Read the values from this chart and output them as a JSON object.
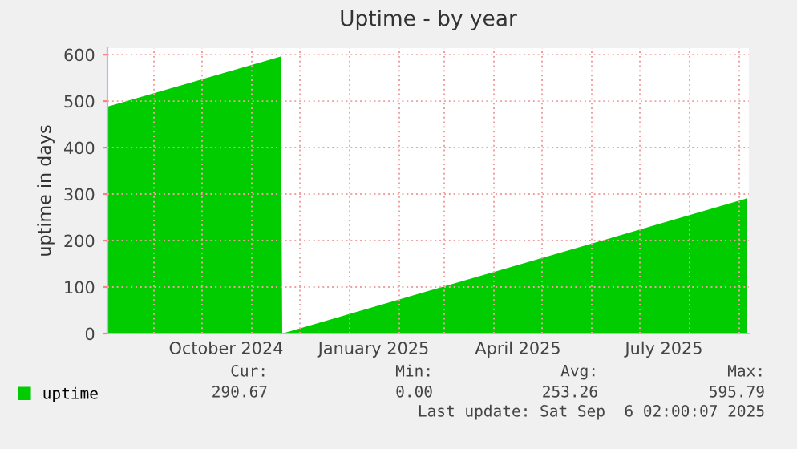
{
  "chart_data": {
    "type": "area",
    "title": "Uptime - by year",
    "ylabel": "uptime in days",
    "x": [
      "2024-08-03",
      "2024-11-19",
      "2024-11-20",
      "2025-09-06"
    ],
    "series": [
      {
        "name": "uptime",
        "color": "#00cc00",
        "values": [
          488,
          596,
          0,
          291
        ]
      }
    ],
    "xlim": [
      "2024-08-03",
      "2025-09-07"
    ],
    "xticks": [
      {
        "value": "2024-09-01",
        "label": null
      },
      {
        "value": "2024-10-01",
        "label": null
      },
      {
        "value": "2024-10-16",
        "label": "October 2024"
      },
      {
        "value": "2024-11-01",
        "label": null
      },
      {
        "value": "2024-12-01",
        "label": null
      },
      {
        "value": "2025-01-01",
        "label": null
      },
      {
        "value": "2025-01-16",
        "label": "January 2025"
      },
      {
        "value": "2025-02-01",
        "label": null
      },
      {
        "value": "2025-03-01",
        "label": null
      },
      {
        "value": "2025-04-01",
        "label": null
      },
      {
        "value": "2025-04-16",
        "label": "April 2025"
      },
      {
        "value": "2025-05-01",
        "label": null
      },
      {
        "value": "2025-06-01",
        "label": null
      },
      {
        "value": "2025-07-01",
        "label": null
      },
      {
        "value": "2025-07-16",
        "label": "July 2025"
      },
      {
        "value": "2025-08-01",
        "label": null
      },
      {
        "value": "2025-09-01",
        "label": null
      }
    ],
    "ylim": [
      0,
      614
    ],
    "yticks": [
      0,
      100,
      200,
      300,
      400,
      500,
      600
    ],
    "grid": true,
    "legend": "bottom left",
    "annotations": [
      "Cur:",
      "Min:",
      "Avg:",
      "Max:",
      "290.67",
      "0.00",
      "253.26",
      "595.79",
      "Last update: Sat Sep  6 02:00:07 2025"
    ]
  }
}
